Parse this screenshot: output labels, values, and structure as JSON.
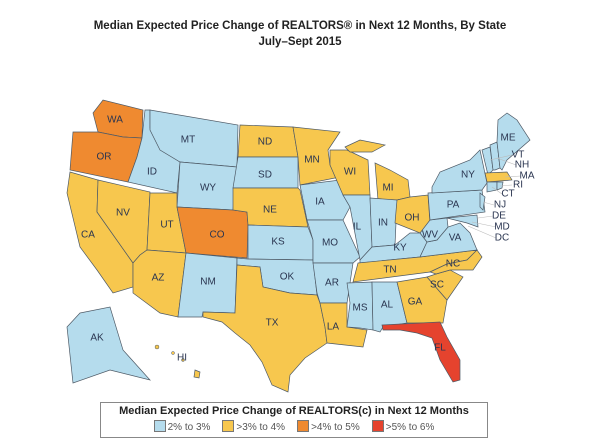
{
  "title": "Median Expected Price Change of REALTORS® in Next 12 Months, By State",
  "subtitle": "July–Sept 2015",
  "categories": [
    {
      "label": "2% to 3%",
      "color": "#b5dced"
    },
    {
      "label": ">3% to 4%",
      "color": "#f7c74e"
    },
    {
      "label": ">4% to 5%",
      "color": "#ef8a30"
    },
    {
      "label": ">5% to 6%",
      "color": "#e5432e"
    }
  ],
  "legend": {
    "title": "Median Expected Price Change of REALTORS(c) in Next 12 Months"
  },
  "states": [
    {
      "abbr": "WA",
      "cat": 2
    },
    {
      "abbr": "OR",
      "cat": 2
    },
    {
      "abbr": "CA",
      "cat": 1
    },
    {
      "abbr": "NV",
      "cat": 1
    },
    {
      "abbr": "ID",
      "cat": 0
    },
    {
      "abbr": "MT",
      "cat": 0
    },
    {
      "abbr": "WY",
      "cat": 0
    },
    {
      "abbr": "UT",
      "cat": 1
    },
    {
      "abbr": "AZ",
      "cat": 1
    },
    {
      "abbr": "CO",
      "cat": 2
    },
    {
      "abbr": "NM",
      "cat": 0
    },
    {
      "abbr": "ND",
      "cat": 1
    },
    {
      "abbr": "SD",
      "cat": 0
    },
    {
      "abbr": "NE",
      "cat": 1
    },
    {
      "abbr": "KS",
      "cat": 0
    },
    {
      "abbr": "OK",
      "cat": 0
    },
    {
      "abbr": "TX",
      "cat": 1
    },
    {
      "abbr": "MN",
      "cat": 1
    },
    {
      "abbr": "IA",
      "cat": 0
    },
    {
      "abbr": "MO",
      "cat": 0
    },
    {
      "abbr": "AR",
      "cat": 0
    },
    {
      "abbr": "LA",
      "cat": 1
    },
    {
      "abbr": "WI",
      "cat": 1
    },
    {
      "abbr": "IL",
      "cat": 0
    },
    {
      "abbr": "MI",
      "cat": 1
    },
    {
      "abbr": "IN",
      "cat": 0
    },
    {
      "abbr": "OH",
      "cat": 1
    },
    {
      "abbr": "KY",
      "cat": 0
    },
    {
      "abbr": "TN",
      "cat": 1
    },
    {
      "abbr": "MS",
      "cat": 0
    },
    {
      "abbr": "AL",
      "cat": 0
    },
    {
      "abbr": "GA",
      "cat": 1
    },
    {
      "abbr": "FL",
      "cat": 3
    },
    {
      "abbr": "SC",
      "cat": 1
    },
    {
      "abbr": "NC",
      "cat": 1
    },
    {
      "abbr": "VA",
      "cat": 0
    },
    {
      "abbr": "WV",
      "cat": 0
    },
    {
      "abbr": "PA",
      "cat": 0
    },
    {
      "abbr": "NY",
      "cat": 0
    },
    {
      "abbr": "NJ",
      "cat": 0
    },
    {
      "abbr": "DE",
      "cat": 0
    },
    {
      "abbr": "MD",
      "cat": 0
    },
    {
      "abbr": "DC",
      "cat": 0
    },
    {
      "abbr": "VT",
      "cat": 0
    },
    {
      "abbr": "NH",
      "cat": 0
    },
    {
      "abbr": "ME",
      "cat": 0
    },
    {
      "abbr": "MA",
      "cat": 1
    },
    {
      "abbr": "CT",
      "cat": 0
    },
    {
      "abbr": "RI",
      "cat": 0
    },
    {
      "abbr": "AK",
      "cat": 0
    },
    {
      "abbr": "HI",
      "cat": 1
    }
  ]
}
